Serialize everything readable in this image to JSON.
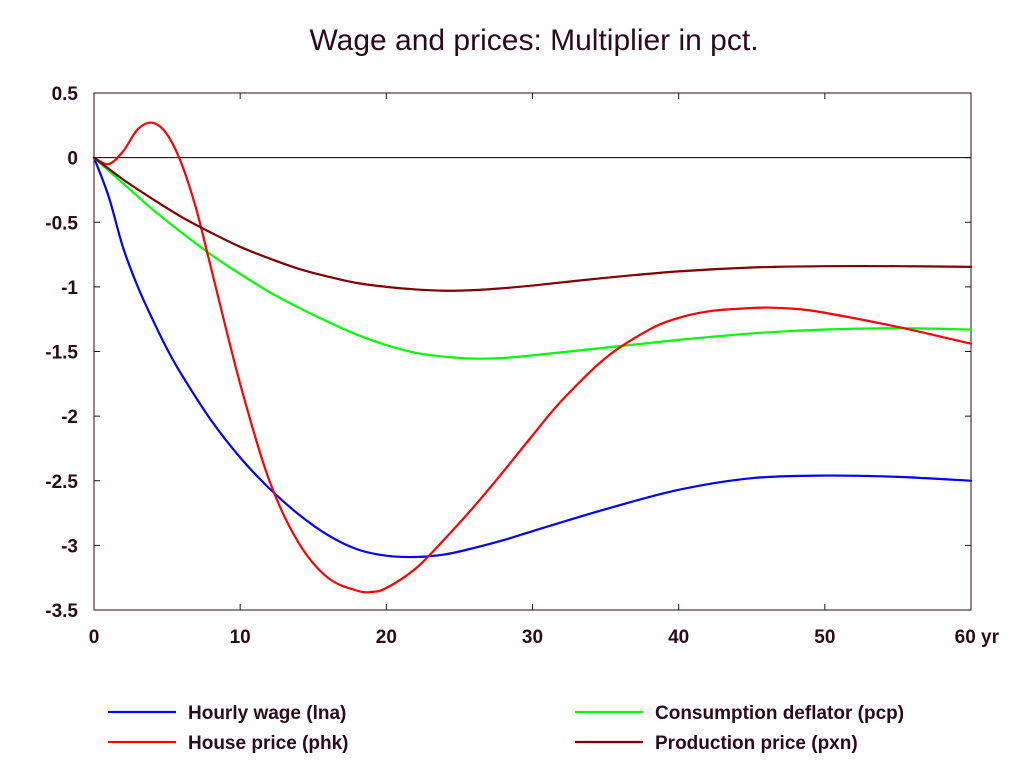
{
  "chart_data": {
    "type": "line",
    "title": "Wage and prices: Multiplier in pct.",
    "x_unit_label": "yr",
    "xlim": [
      0,
      60
    ],
    "ylim": [
      -3.5,
      0.5
    ],
    "x_ticks": [
      0,
      10,
      20,
      30,
      40,
      50,
      60
    ],
    "x_tick_labels": [
      "0",
      "10",
      "20",
      "30",
      "40",
      "50",
      "60 yr"
    ],
    "y_ticks": [
      0.5,
      0,
      -0.5,
      -1,
      -1.5,
      -2,
      -2.5,
      -3,
      -3.5
    ],
    "y_tick_labels": [
      "0.5",
      "0",
      "-0.5",
      "-1",
      "-1.5",
      "-2",
      "-2.5",
      "-3",
      "-3.5"
    ],
    "zero_line": true,
    "grid": false,
    "legend_position": "bottom",
    "series": [
      {
        "name": "Hourly wage (lna)",
        "color": "#0000ff",
        "x": [
          0,
          1,
          2,
          3,
          4,
          5,
          6,
          8,
          10,
          12,
          14,
          16,
          18,
          20,
          22,
          24,
          26,
          28,
          30,
          35,
          40,
          45,
          50,
          55,
          60
        ],
        "y": [
          0,
          -0.3,
          -0.7,
          -1.0,
          -1.25,
          -1.48,
          -1.68,
          -2.03,
          -2.32,
          -2.56,
          -2.76,
          -2.92,
          -3.03,
          -3.08,
          -3.09,
          -3.07,
          -3.02,
          -2.96,
          -2.89,
          -2.72,
          -2.57,
          -2.48,
          -2.46,
          -2.47,
          -2.5
        ]
      },
      {
        "name": "Consumption deflator (pcp)",
        "color": "#00ff00",
        "x": [
          0,
          2,
          4,
          6,
          8,
          10,
          12,
          14,
          16,
          18,
          20,
          22,
          24,
          26,
          28,
          30,
          35,
          40,
          45,
          50,
          55,
          60
        ],
        "y": [
          0,
          -0.2,
          -0.4,
          -0.58,
          -0.75,
          -0.9,
          -1.04,
          -1.16,
          -1.27,
          -1.37,
          -1.45,
          -1.51,
          -1.54,
          -1.555,
          -1.55,
          -1.53,
          -1.47,
          -1.41,
          -1.36,
          -1.33,
          -1.32,
          -1.33
        ]
      },
      {
        "name": "House price (phk)",
        "color": "#ff0000",
        "x": [
          0,
          1,
          2,
          3,
          4,
          5,
          6,
          7,
          8,
          10,
          12,
          14,
          16,
          18,
          19,
          20,
          22,
          24,
          26,
          28,
          30,
          32,
          35,
          38,
          40,
          42,
          44,
          46,
          48,
          50,
          55,
          60
        ],
        "y": [
          0,
          -0.05,
          0.05,
          0.22,
          0.27,
          0.18,
          -0.05,
          -0.4,
          -0.85,
          -1.75,
          -2.5,
          -2.98,
          -3.25,
          -3.35,
          -3.36,
          -3.33,
          -3.18,
          -2.95,
          -2.7,
          -2.43,
          -2.15,
          -1.88,
          -1.55,
          -1.33,
          -1.24,
          -1.19,
          -1.17,
          -1.16,
          -1.17,
          -1.2,
          -1.31,
          -1.44
        ]
      },
      {
        "name": "Production price (pxn)",
        "color": "#800000",
        "x": [
          0,
          2,
          4,
          6,
          8,
          10,
          12,
          14,
          16,
          18,
          20,
          22,
          24,
          26,
          28,
          30,
          35,
          40,
          45,
          50,
          55,
          60
        ],
        "y": [
          0,
          -0.17,
          -0.32,
          -0.46,
          -0.58,
          -0.69,
          -0.78,
          -0.86,
          -0.92,
          -0.97,
          -1.0,
          -1.02,
          -1.03,
          -1.025,
          -1.01,
          -0.99,
          -0.93,
          -0.88,
          -0.85,
          -0.84,
          -0.84,
          -0.845
        ]
      }
    ]
  }
}
